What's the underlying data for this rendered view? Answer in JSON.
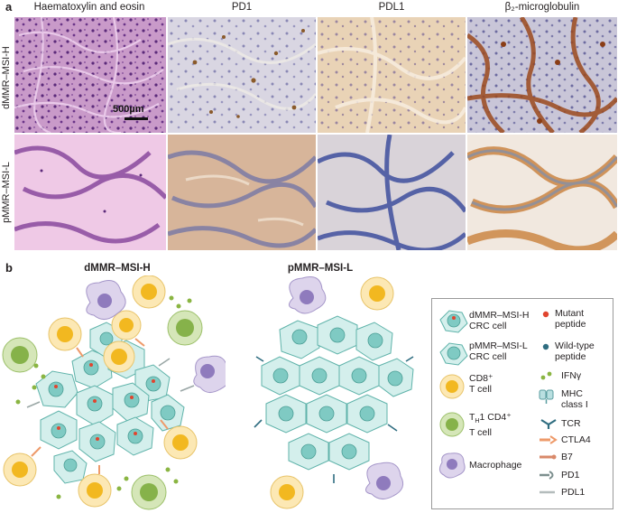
{
  "panel_a": {
    "letter": "a",
    "columns": [
      "Haematoxylin and eosin",
      "PD1",
      "PDL1",
      "β₂-microglobulin"
    ],
    "rows": [
      "dMMR–MSI-H",
      "pMMR–MSI-L"
    ],
    "scale_bar_label": "500µm"
  },
  "panel_b": {
    "letter": "b",
    "left_title": "dMMR–MSI-H",
    "right_title": "pMMR–MSI-L",
    "legend": {
      "dmmr_cell": [
        "dMMR–MSI-H",
        "CRC cell"
      ],
      "pmmr_cell": [
        "pMMR–MSI-L",
        "CRC cell"
      ],
      "cd8": [
        "CD8⁺",
        "T cell"
      ],
      "th1": [
        "T)",
        "T cell"
      ],
      "th1_line1_main": "T",
      "th1_line1_sub": "H",
      "th1_line1_rest": "1 CD4⁺",
      "th1_line2": "T cell",
      "macrophage": "Macrophage",
      "mutant": [
        "Mutant",
        "peptide"
      ],
      "wildtype": [
        "Wild-type",
        "peptide"
      ],
      "ifng": "IFNγ",
      "mhc": [
        "MHC",
        "class I"
      ],
      "tcr": "TCR",
      "ctla4": "CTLA4",
      "b7": "B7",
      "pd1": "PD1",
      "pdl1": "PDL1"
    }
  },
  "colors": {
    "crc_cell": "#d4efec",
    "crc_nucleus": "#7fcac3",
    "cd8_outer": "#fce8b4",
    "cd8_inner": "#f2b820",
    "th1_outer": "#d5e6b8",
    "th1_inner": "#86b24a",
    "macro_outer": "#ddd4ec",
    "macro_inner": "#8f7bbd",
    "mutant": "#e0452f",
    "wildtype": "#2f6d80",
    "ifng": "#8ab542",
    "ctla4": "#ee9a6a"
  }
}
